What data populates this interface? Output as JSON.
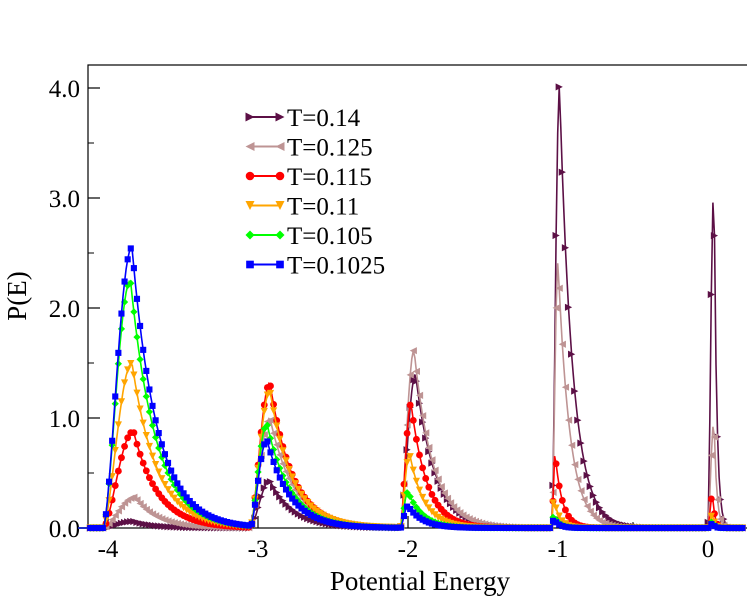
{
  "chart_data": {
    "type": "line",
    "title": "",
    "xlabel": "Potential Energy",
    "ylabel": "P(E)",
    "xlim": [
      -4.2,
      0.25
    ],
    "ylim": [
      0,
      4.2
    ],
    "grid": false,
    "legend_position": "top-center",
    "x_ticks": [
      -4,
      -3,
      -2,
      -1,
      0
    ],
    "x_tick_labels": [
      "-4",
      "-3",
      "-2",
      "-1",
      "0"
    ],
    "y_ticks": [
      0,
      1,
      2,
      3,
      4
    ],
    "y_tick_labels": [
      "0.0",
      "1.0",
      "2.0",
      "3.0",
      "4.0"
    ],
    "series": [
      {
        "name": "T=0.14",
        "color": "#5c1046",
        "marker": "triangle-right",
        "peaks": [
          {
            "onset": -4.03,
            "peak_x": -3.83,
            "height": 0.06,
            "end": -3.2
          },
          {
            "onset": -3.05,
            "peak_x": -2.92,
            "height": 0.43,
            "end": -2.22
          },
          {
            "onset": -2.05,
            "peak_x": -1.95,
            "height": 1.4,
            "end": -1.38
          },
          {
            "onset": -1.04,
            "peak_x": -0.99,
            "height": 4.02,
            "end": -0.6
          },
          {
            "onset": 0.0,
            "peak_x": 0.04,
            "height": 3.15,
            "end": 0.12
          }
        ]
      },
      {
        "name": "T=0.125",
        "color": "#be9494",
        "marker": "triangle-left",
        "peaks": [
          {
            "onset": -4.03,
            "peak_x": -3.82,
            "height": 0.28,
            "end": -3.15
          },
          {
            "onset": -3.05,
            "peak_x": -2.92,
            "height": 1.0,
            "end": -2.2
          },
          {
            "onset": -2.05,
            "peak_x": -1.96,
            "height": 1.62,
            "end": -1.4
          },
          {
            "onset": -1.04,
            "peak_x": -1.0,
            "height": 2.42,
            "end": -0.65
          },
          {
            "onset": 0.0,
            "peak_x": 0.04,
            "height": 0.98,
            "end": 0.12
          }
        ]
      },
      {
        "name": "T=0.115",
        "color": "#ff0000",
        "marker": "circle",
        "peaks": [
          {
            "onset": -4.03,
            "peak_x": -3.83,
            "height": 0.88,
            "end": -3.1
          },
          {
            "onset": -3.05,
            "peak_x": -2.92,
            "height": 1.32,
            "end": -2.25
          },
          {
            "onset": -2.05,
            "peak_x": -1.98,
            "height": 1.13,
            "end": -1.5
          },
          {
            "onset": -1.04,
            "peak_x": -1.02,
            "height": 0.68,
            "end": -0.8
          },
          {
            "onset": 0.0,
            "peak_x": 0.03,
            "height": 0.3,
            "end": 0.1
          }
        ]
      },
      {
        "name": "T=0.11",
        "color": "#ffa500",
        "marker": "triangle-down",
        "peaks": [
          {
            "onset": -4.03,
            "peak_x": -3.84,
            "height": 1.5,
            "end": -3.1
          },
          {
            "onset": -3.05,
            "peak_x": -2.92,
            "height": 1.25,
            "end": -2.25
          },
          {
            "onset": -2.05,
            "peak_x": -1.99,
            "height": 0.68,
            "end": -1.55
          },
          {
            "onset": -1.04,
            "peak_x": -1.03,
            "height": 0.28,
            "end": -0.85
          },
          {
            "onset": 0.0,
            "peak_x": 0.03,
            "height": 0.12,
            "end": 0.1
          }
        ]
      },
      {
        "name": "T=0.105",
        "color": "#00ff00",
        "marker": "diamond",
        "peaks": [
          {
            "onset": -4.03,
            "peak_x": -3.85,
            "height": 2.25,
            "end": -3.1
          },
          {
            "onset": -3.05,
            "peak_x": -2.94,
            "height": 0.95,
            "end": -2.25
          },
          {
            "onset": -2.05,
            "peak_x": -2.0,
            "height": 0.33,
            "end": -1.55
          },
          {
            "onset": -1.04,
            "peak_x": -1.03,
            "height": 0.12,
            "end": -0.85
          },
          {
            "onset": 0.0,
            "peak_x": 0.03,
            "height": 0.06,
            "end": 0.1
          }
        ]
      },
      {
        "name": "T=0.1025",
        "color": "#0000ff",
        "marker": "square",
        "peaks": [
          {
            "onset": -4.03,
            "peak_x": -3.84,
            "height": 2.55,
            "end": -3.1
          },
          {
            "onset": -3.05,
            "peak_x": -2.94,
            "height": 0.8,
            "end": -2.25
          },
          {
            "onset": -2.05,
            "peak_x": -2.0,
            "height": 0.2,
            "end": -1.55
          },
          {
            "onset": -1.04,
            "peak_x": -1.03,
            "height": 0.08,
            "end": -0.85
          },
          {
            "onset": 0.0,
            "peak_x": 0.03,
            "height": 0.04,
            "end": 0.1
          }
        ]
      }
    ]
  }
}
